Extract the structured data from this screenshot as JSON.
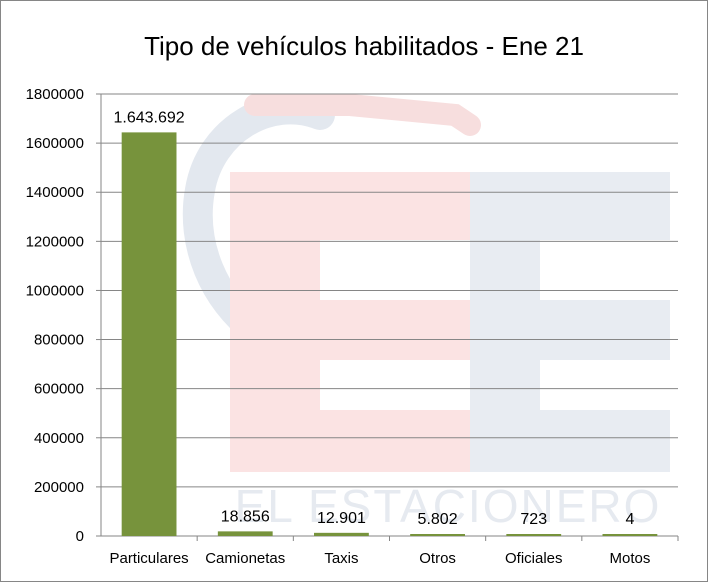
{
  "chart_data": {
    "type": "bar",
    "title": "Tipo de vehículos habilitados - Ene 21",
    "xlabel": "",
    "ylabel": "",
    "categories": [
      "Particulares",
      "Camionetas",
      "Taxis",
      "Otros",
      "Oficiales",
      "Motos"
    ],
    "values": [
      1643692,
      18856,
      12901,
      5802,
      723,
      4
    ],
    "data_labels": [
      "1.643.692",
      "18.856",
      "12.901",
      "5.802",
      "723",
      "4"
    ],
    "ylim": [
      0,
      1800000
    ],
    "y_ticks": [
      0,
      200000,
      400000,
      600000,
      800000,
      1000000,
      1200000,
      1400000,
      1600000,
      1800000
    ],
    "y_tick_labels": [
      "0",
      "200000",
      "400000",
      "600000",
      "800000",
      "1000000",
      "1200000",
      "1400000",
      "1600000",
      "1800000"
    ],
    "grid": true,
    "legend": "none",
    "bar_color": "#77933c",
    "watermark_text": "EL ESTACIONERO"
  }
}
